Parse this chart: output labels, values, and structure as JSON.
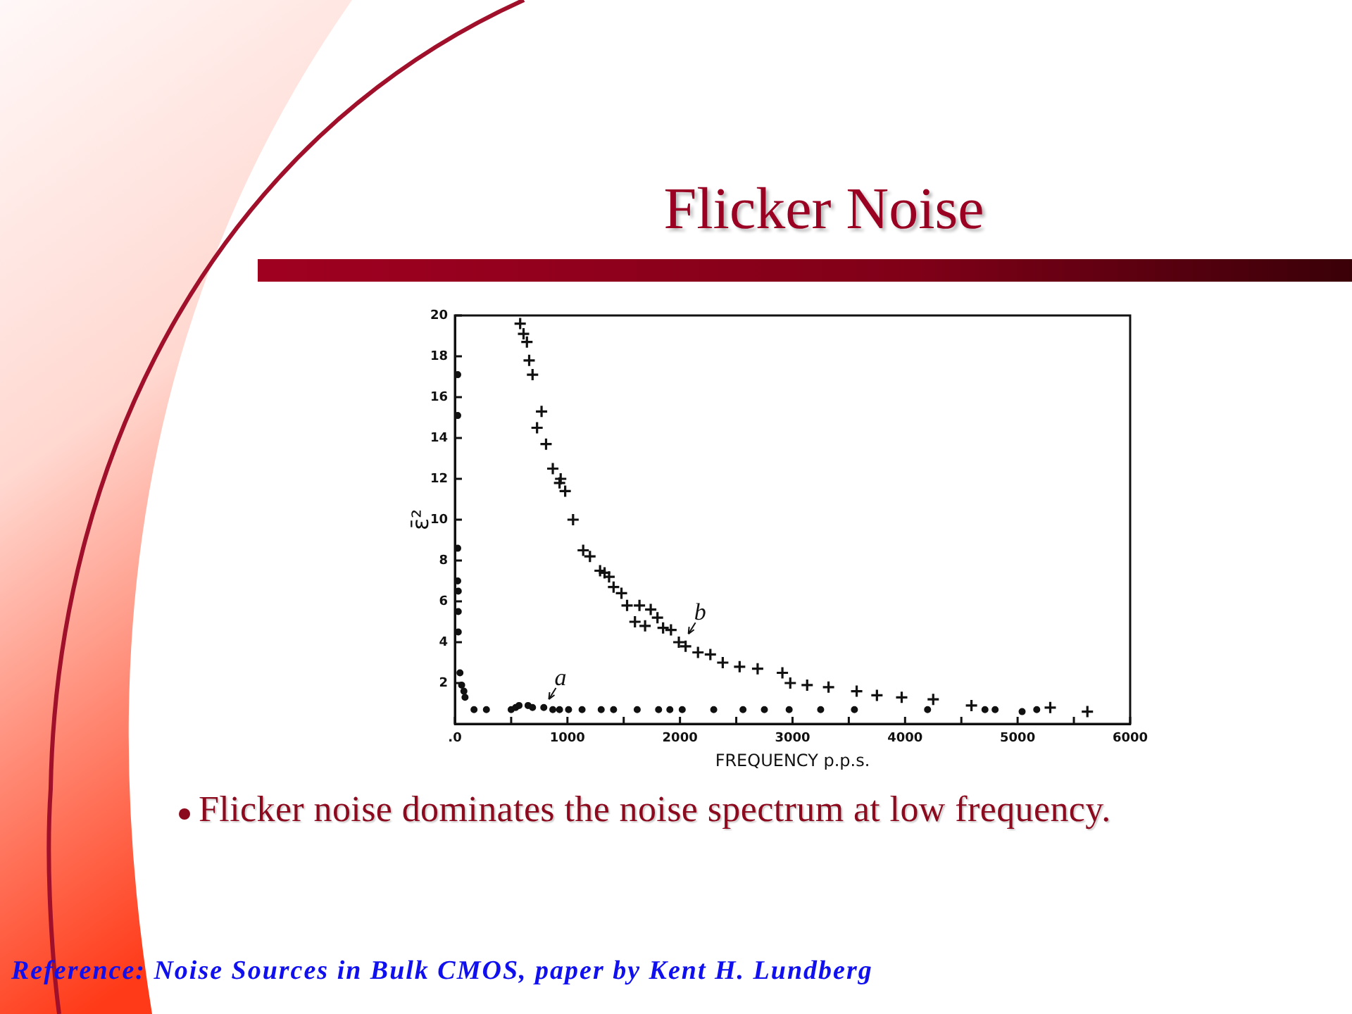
{
  "chart_data": {
    "type": "scatter",
    "title": "Flicker Noise",
    "xlabel": "FREQUENCY p.p.s.",
    "ylabel": "ε̄²",
    "xlim": [
      0,
      6000
    ],
    "xticks": [
      {
        "value": 0,
        "label": ".0"
      },
      {
        "value": 500,
        "label": null
      },
      1000,
      {
        "value": 1500,
        "label": null
      },
      2000,
      {
        "value": 2500,
        "label": null
      },
      3000,
      {
        "value": 3500,
        "label": null
      },
      4000,
      {
        "value": 4500,
        "label": null
      },
      5000,
      {
        "value": 5500,
        "label": null
      },
      6000
    ],
    "ylim": [
      0,
      20
    ],
    "yticks": [
      2,
      4,
      6,
      8,
      10,
      12,
      14,
      16,
      18,
      20
    ],
    "series": [
      {
        "color": "#111111",
        "marker": "cross",
        "x": [
          580,
          610,
          640,
          660,
          690,
          730,
          770,
          810,
          870,
          930,
          940,
          980,
          1050,
          1140,
          1200,
          1290,
          1330,
          1370,
          1410,
          1480,
          1530,
          1600,
          1640,
          1690,
          1740,
          1800,
          1850,
          1920,
          1990,
          2050,
          2160,
          2270,
          2380,
          2530,
          2690,
          2910,
          2980,
          3130,
          3320,
          3570,
          3750,
          3970,
          4250,
          4590,
          5290,
          5620
        ],
        "values": [
          19.6,
          19.1,
          18.7,
          17.8,
          17.1,
          14.5,
          15.3,
          13.7,
          12.5,
          11.8,
          12.0,
          11.4,
          10.0,
          8.5,
          8.2,
          7.5,
          7.4,
          7.2,
          6.7,
          6.4,
          5.8,
          5.0,
          5.8,
          4.8,
          5.6,
          5.2,
          4.7,
          4.6,
          4.0,
          3.8,
          3.5,
          3.4,
          3.0,
          2.8,
          2.7,
          2.5,
          2.0,
          1.9,
          1.8,
          1.6,
          1.4,
          1.3,
          1.2,
          0.9,
          0.8,
          0.6
        ]
      },
      {
        "color": "#111111",
        "marker": "circle",
        "x": [
          25,
          25,
          25,
          25,
          30,
          30,
          30,
          45,
          60,
          80,
          90,
          170,
          280,
          500,
          540,
          570,
          650,
          690,
          790,
          870,
          930,
          1010,
          1130,
          1300,
          1410,
          1620,
          1810,
          1910,
          2020,
          2300,
          2560,
          2750,
          2970,
          3250,
          3550,
          4200,
          4710,
          4800,
          5040,
          5170
        ],
        "values": [
          17.1,
          15.1,
          8.6,
          7.0,
          6.5,
          5.5,
          4.5,
          2.5,
          1.9,
          1.6,
          1.3,
          0.7,
          0.7,
          0.7,
          0.8,
          0.9,
          0.9,
          0.8,
          0.8,
          0.7,
          0.7,
          0.7,
          0.7,
          0.7,
          0.7,
          0.7,
          0.7,
          0.7,
          0.7,
          0.7,
          0.7,
          0.7,
          0.7,
          0.7,
          0.7,
          0.7,
          0.7,
          0.7,
          0.6,
          0.7
        ]
      }
    ],
    "annotations": [
      "Flicker noise dominates the noise spectrum at low frequency.",
      "Reference: Noise Sources in Bulk CMOS, paper by Kent H. Lundberg",
      {
        "text": "a",
        "x": 810,
        "y": 1.0
      },
      {
        "text": "b",
        "x": 2050,
        "y": 4.2
      }
    ]
  }
}
